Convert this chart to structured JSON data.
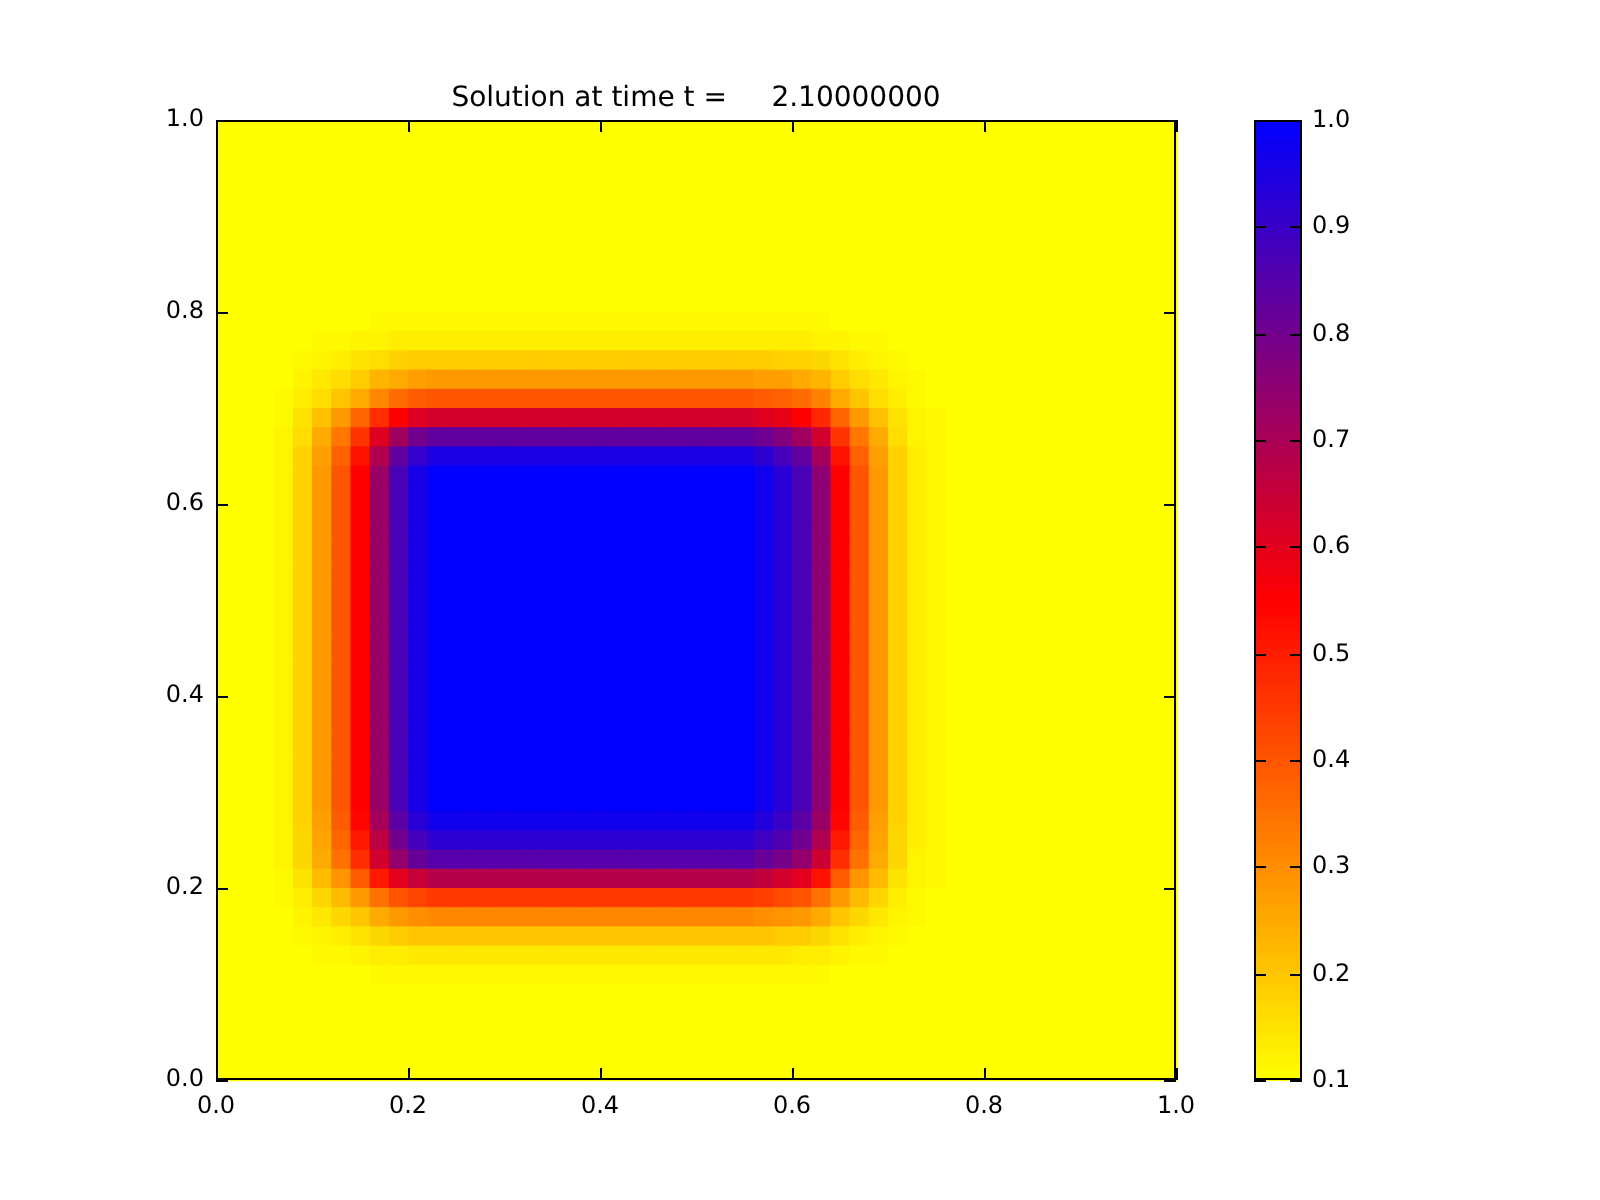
{
  "chart_data": {
    "type": "heatmap",
    "title": "Solution at time t =     2.10000000",
    "xlim": [
      0,
      1
    ],
    "xticks": [
      {
        "value": 0,
        "label": "0.0"
      },
      0.2,
      0.4,
      0.6,
      0.8,
      {
        "value": 1,
        "label": "1.0"
      }
    ],
    "ylim": [
      0,
      1
    ],
    "yticks": [
      {
        "value": 0,
        "label": "0.0"
      },
      0.2,
      0.4,
      0.6,
      0.8,
      {
        "value": 1,
        "label": "1.0"
      }
    ],
    "clim": [
      0.1,
      1
    ],
    "cticks": [
      0.1,
      0.2,
      0.3,
      0.4,
      0.5,
      0.6,
      0.7,
      0.8,
      0.9,
      {
        "value": 1,
        "label": "1.0"
      }
    ],
    "x": [
      0.01,
      0.03,
      0.05,
      0.07,
      0.09,
      0.11,
      0.13,
      0.15,
      0.17,
      0.19,
      0.21,
      0.23,
      0.25,
      0.27,
      0.29,
      0.31,
      0.33,
      0.35,
      0.37,
      0.39,
      0.41,
      0.43,
      0.45,
      0.47,
      0.49,
      0.51,
      0.53,
      0.55,
      0.57,
      0.59,
      0.61,
      0.63,
      0.65,
      0.67,
      0.69,
      0.71,
      0.73,
      0.75,
      0.77,
      0.79,
      0.81,
      0.83,
      0.85,
      0.87,
      0.89,
      0.91,
      0.93,
      0.95,
      0.97,
      0.99
    ],
    "y": [
      0.99,
      0.97,
      0.95,
      0.93,
      0.91,
      0.89,
      0.87,
      0.85,
      0.83,
      0.81,
      0.79,
      0.77,
      0.75,
      0.73,
      0.71,
      0.69,
      0.67,
      0.65,
      0.63,
      0.61,
      0.59,
      0.57,
      0.55,
      0.53,
      0.51,
      0.49,
      0.47,
      0.45,
      0.43,
      0.41,
      0.39,
      0.37,
      0.35,
      0.33,
      0.31,
      0.29,
      0.27,
      0.25,
      0.23,
      0.21,
      0.19,
      0.17,
      0.15,
      0.13,
      0.11,
      0.09,
      0.07,
      0.05,
      0.03,
      0.01
    ],
    "cells": [
      [
        0.1,
        0.1,
        0.1,
        0.1,
        0.1,
        0.1,
        0.1,
        0.1,
        0.1,
        0.1,
        0.1,
        0.1,
        0.1,
        0.1,
        0.1,
        0.1,
        0.1,
        0.1,
        0.1,
        0.1,
        0.1,
        0.1,
        0.1,
        0.1,
        0.1,
        0.1,
        0.1,
        0.1,
        0.1,
        0.1,
        0.1,
        0.1,
        0.1,
        0.1,
        0.1,
        0.1,
        0.1,
        0.1,
        0.1,
        0.1,
        0.1,
        0.1,
        0.1,
        0.1,
        0.1,
        0.1,
        0.1,
        0.1,
        0.1,
        0.1
      ],
      [
        0.1,
        0.1,
        0.1,
        0.1,
        0.1,
        0.1,
        0.1,
        0.1,
        0.1,
        0.1,
        0.1,
        0.1,
        0.1,
        0.1,
        0.1,
        0.1,
        0.1,
        0.1,
        0.1,
        0.1,
        0.1,
        0.1,
        0.1,
        0.1,
        0.1,
        0.1,
        0.1,
        0.1,
        0.1,
        0.1,
        0.1,
        0.1,
        0.1,
        0.1,
        0.1,
        0.1,
        0.1,
        0.1,
        0.1,
        0.1,
        0.1,
        0.1,
        0.1,
        0.1,
        0.1,
        0.1,
        0.1,
        0.1,
        0.1,
        0.1
      ],
      [
        0.1,
        0.1,
        0.1,
        0.1,
        0.1,
        0.1,
        0.1,
        0.1,
        0.1,
        0.1,
        0.1,
        0.1,
        0.1,
        0.1,
        0.1,
        0.1,
        0.1,
        0.1,
        0.1,
        0.1,
        0.1,
        0.1,
        0.1,
        0.1,
        0.1,
        0.1,
        0.1,
        0.1,
        0.1,
        0.1,
        0.1,
        0.1,
        0.1,
        0.1,
        0.1,
        0.1,
        0.1,
        0.1,
        0.1,
        0.1,
        0.1,
        0.1,
        0.1,
        0.1,
        0.1,
        0.1,
        0.1,
        0.1,
        0.1,
        0.1
      ],
      [
        0.1,
        0.1,
        0.1,
        0.1,
        0.1,
        0.1,
        0.1,
        0.1,
        0.1,
        0.1,
        0.1,
        0.1,
        0.1,
        0.1,
        0.1,
        0.1,
        0.1,
        0.1,
        0.1,
        0.1,
        0.1,
        0.1,
        0.1,
        0.1,
        0.1,
        0.1,
        0.1,
        0.1,
        0.1,
        0.1,
        0.1,
        0.1,
        0.1,
        0.1,
        0.1,
        0.1,
        0.1,
        0.1,
        0.1,
        0.1,
        0.1,
        0.1,
        0.1,
        0.1,
        0.1,
        0.1,
        0.1,
        0.1,
        0.1,
        0.1
      ],
      [
        0.1,
        0.1,
        0.1,
        0.1,
        0.1,
        0.1,
        0.1,
        0.1,
        0.1,
        0.1,
        0.1,
        0.1,
        0.1,
        0.1,
        0.1,
        0.1,
        0.1,
        0.1,
        0.1,
        0.1,
        0.1,
        0.1,
        0.1,
        0.1,
        0.1,
        0.1,
        0.1,
        0.1,
        0.1,
        0.1,
        0.1,
        0.1,
        0.1,
        0.1,
        0.1,
        0.1,
        0.1,
        0.1,
        0.1,
        0.1,
        0.1,
        0.1,
        0.1,
        0.1,
        0.1,
        0.1,
        0.1,
        0.1,
        0.1,
        0.1
      ],
      [
        0.1,
        0.1,
        0.1,
        0.1,
        0.1,
        0.1,
        0.1,
        0.1,
        0.1,
        0.1,
        0.1,
        0.1,
        0.1,
        0.1,
        0.1,
        0.1,
        0.1,
        0.1,
        0.1,
        0.1,
        0.1,
        0.1,
        0.1,
        0.1,
        0.1,
        0.1,
        0.1,
        0.1,
        0.1,
        0.1,
        0.1,
        0.1,
        0.1,
        0.1,
        0.1,
        0.1,
        0.1,
        0.1,
        0.1,
        0.1,
        0.1,
        0.1,
        0.1,
        0.1,
        0.1,
        0.1,
        0.1,
        0.1,
        0.1,
        0.1
      ],
      [
        0.1,
        0.1,
        0.1,
        0.1,
        0.1,
        0.1,
        0.1,
        0.1,
        0.1,
        0.1,
        0.1,
        0.1,
        0.1,
        0.1,
        0.1,
        0.1,
        0.1,
        0.1,
        0.1,
        0.1,
        0.1,
        0.1,
        0.1,
        0.1,
        0.1,
        0.1,
        0.1,
        0.1,
        0.1,
        0.1,
        0.1,
        0.1,
        0.1,
        0.1,
        0.1,
        0.1,
        0.1,
        0.1,
        0.1,
        0.1,
        0.1,
        0.1,
        0.1,
        0.1,
        0.1,
        0.1,
        0.1,
        0.1,
        0.1,
        0.1
      ],
      [
        0.1,
        0.1,
        0.1,
        0.1,
        0.1,
        0.1,
        0.1,
        0.1,
        0.1,
        0.1,
        0.1,
        0.1,
        0.1,
        0.1,
        0.1,
        0.1,
        0.1,
        0.1,
        0.1,
        0.1,
        0.1,
        0.1,
        0.1,
        0.1,
        0.1,
        0.1,
        0.1,
        0.1,
        0.1,
        0.1,
        0.1,
        0.1,
        0.1,
        0.1,
        0.1,
        0.1,
        0.1,
        0.1,
        0.1,
        0.1,
        0.1,
        0.1,
        0.1,
        0.1,
        0.1,
        0.1,
        0.1,
        0.1,
        0.1,
        0.1
      ],
      [
        0.1,
        0.1,
        0.1,
        0.1,
        0.1,
        0.1,
        0.1,
        0.1,
        0.1,
        0.1,
        0.1,
        0.1,
        0.1,
        0.1,
        0.1,
        0.1,
        0.1,
        0.1,
        0.1,
        0.1,
        0.1,
        0.1,
        0.1,
        0.1,
        0.1,
        0.1,
        0.1,
        0.1,
        0.1,
        0.1,
        0.1,
        0.1,
        0.1,
        0.1,
        0.1,
        0.1,
        0.1,
        0.1,
        0.1,
        0.1,
        0.1,
        0.1,
        0.1,
        0.1,
        0.1,
        0.1,
        0.1,
        0.1,
        0.1,
        0.1
      ],
      [
        0.1,
        0.1,
        0.1,
        0.1,
        0.1,
        0.1,
        0.1,
        0.1,
        0.1,
        0.1,
        0.1,
        0.1,
        0.1,
        0.1,
        0.1,
        0.1,
        0.1,
        0.1,
        0.1,
        0.1,
        0.1,
        0.1,
        0.1,
        0.1,
        0.1,
        0.1,
        0.1,
        0.1,
        0.1,
        0.1,
        0.1,
        0.1,
        0.1,
        0.1,
        0.1,
        0.1,
        0.1,
        0.1,
        0.1,
        0.1,
        0.1,
        0.1,
        0.1,
        0.1,
        0.1,
        0.1,
        0.1,
        0.1,
        0.1,
        0.1
      ],
      [
        0.1,
        0.1,
        0.1,
        0.1,
        0.1,
        0.1,
        0.1,
        0.1,
        0.11,
        0.11,
        0.11,
        0.11,
        0.11,
        0.11,
        0.11,
        0.11,
        0.11,
        0.11,
        0.11,
        0.11,
        0.11,
        0.11,
        0.11,
        0.11,
        0.11,
        0.11,
        0.11,
        0.11,
        0.11,
        0.11,
        0.11,
        0.11,
        0.1,
        0.1,
        0.1,
        0.1,
        0.1,
        0.1,
        0.1,
        0.1,
        0.1,
        0.1,
        0.1,
        0.1,
        0.1,
        0.1,
        0.1,
        0.1,
        0.1,
        0.1
      ],
      [
        0.1,
        0.1,
        0.1,
        0.1,
        0.1,
        0.11,
        0.11,
        0.12,
        0.12,
        0.13,
        0.13,
        0.13,
        0.13,
        0.13,
        0.13,
        0.13,
        0.13,
        0.13,
        0.13,
        0.13,
        0.13,
        0.13,
        0.13,
        0.13,
        0.13,
        0.13,
        0.13,
        0.13,
        0.13,
        0.13,
        0.13,
        0.12,
        0.12,
        0.11,
        0.11,
        0.1,
        0.1,
        0.1,
        0.1,
        0.1,
        0.1,
        0.1,
        0.1,
        0.1,
        0.1,
        0.1,
        0.1,
        0.1,
        0.1,
        0.1
      ],
      [
        0.1,
        0.1,
        0.1,
        0.1,
        0.11,
        0.12,
        0.13,
        0.15,
        0.16,
        0.18,
        0.19,
        0.19,
        0.19,
        0.19,
        0.19,
        0.19,
        0.19,
        0.19,
        0.19,
        0.19,
        0.19,
        0.19,
        0.19,
        0.19,
        0.19,
        0.19,
        0.19,
        0.19,
        0.19,
        0.18,
        0.18,
        0.17,
        0.15,
        0.13,
        0.12,
        0.11,
        0.1,
        0.1,
        0.1,
        0.1,
        0.1,
        0.1,
        0.1,
        0.1,
        0.1,
        0.1,
        0.1,
        0.1,
        0.1,
        0.1
      ],
      [
        0.1,
        0.1,
        0.1,
        0.1,
        0.12,
        0.14,
        0.16,
        0.19,
        0.23,
        0.25,
        0.27,
        0.28,
        0.28,
        0.28,
        0.28,
        0.28,
        0.28,
        0.28,
        0.28,
        0.28,
        0.28,
        0.28,
        0.28,
        0.28,
        0.28,
        0.28,
        0.28,
        0.28,
        0.27,
        0.27,
        0.25,
        0.23,
        0.19,
        0.16,
        0.14,
        0.12,
        0.11,
        0.1,
        0.1,
        0.1,
        0.1,
        0.1,
        0.1,
        0.1,
        0.1,
        0.1,
        0.1,
        0.1,
        0.1,
        0.1
      ],
      [
        0.1,
        0.1,
        0.1,
        0.11,
        0.13,
        0.16,
        0.2,
        0.25,
        0.31,
        0.36,
        0.39,
        0.4,
        0.4,
        0.4,
        0.4,
        0.4,
        0.4,
        0.4,
        0.4,
        0.4,
        0.4,
        0.4,
        0.4,
        0.4,
        0.4,
        0.4,
        0.4,
        0.4,
        0.39,
        0.38,
        0.36,
        0.32,
        0.25,
        0.2,
        0.16,
        0.13,
        0.11,
        0.1,
        0.1,
        0.1,
        0.1,
        0.1,
        0.1,
        0.1,
        0.1,
        0.1,
        0.1,
        0.1,
        0.1,
        0.1
      ],
      [
        0.1,
        0.1,
        0.1,
        0.11,
        0.15,
        0.21,
        0.28,
        0.37,
        0.47,
        0.55,
        0.61,
        0.63,
        0.63,
        0.63,
        0.63,
        0.63,
        0.63,
        0.63,
        0.63,
        0.63,
        0.63,
        0.63,
        0.63,
        0.63,
        0.63,
        0.63,
        0.63,
        0.63,
        0.61,
        0.59,
        0.55,
        0.48,
        0.37,
        0.28,
        0.21,
        0.15,
        0.12,
        0.11,
        0.1,
        0.1,
        0.1,
        0.1,
        0.1,
        0.1,
        0.1,
        0.1,
        0.1,
        0.1,
        0.1,
        0.1
      ],
      [
        0.1,
        0.1,
        0.1,
        0.12,
        0.16,
        0.25,
        0.34,
        0.46,
        0.61,
        0.72,
        0.8,
        0.83,
        0.83,
        0.83,
        0.83,
        0.83,
        0.83,
        0.83,
        0.83,
        0.83,
        0.83,
        0.83,
        0.83,
        0.83,
        0.83,
        0.83,
        0.83,
        0.83,
        0.81,
        0.77,
        0.72,
        0.63,
        0.46,
        0.34,
        0.25,
        0.16,
        0.12,
        0.11,
        0.1,
        0.1,
        0.1,
        0.1,
        0.1,
        0.1,
        0.1,
        0.1,
        0.1,
        0.1,
        0.1,
        0.1
      ],
      [
        0.1,
        0.1,
        0.1,
        0.12,
        0.18,
        0.27,
        0.38,
        0.52,
        0.69,
        0.83,
        0.91,
        0.95,
        0.95,
        0.95,
        0.95,
        0.95,
        0.95,
        0.95,
        0.95,
        0.95,
        0.95,
        0.95,
        0.95,
        0.95,
        0.95,
        0.95,
        0.95,
        0.95,
        0.92,
        0.88,
        0.83,
        0.71,
        0.52,
        0.38,
        0.27,
        0.18,
        0.13,
        0.11,
        0.1,
        0.1,
        0.1,
        0.1,
        0.1,
        0.1,
        0.1,
        0.1,
        0.1,
        0.1,
        0.1,
        0.1
      ],
      [
        0.1,
        0.1,
        0.1,
        0.12,
        0.18,
        0.28,
        0.4,
        0.55,
        0.73,
        0.87,
        0.96,
        1,
        1,
        1,
        1,
        1,
        1,
        1,
        1,
        1,
        1,
        1,
        1,
        1,
        1,
        1,
        1,
        1,
        0.97,
        0.93,
        0.87,
        0.75,
        0.55,
        0.4,
        0.28,
        0.18,
        0.13,
        0.11,
        0.1,
        0.1,
        0.1,
        0.1,
        0.1,
        0.1,
        0.1,
        0.1,
        0.1,
        0.1,
        0.1,
        0.1
      ],
      [
        0.1,
        0.1,
        0.1,
        0.12,
        0.18,
        0.28,
        0.4,
        0.55,
        0.73,
        0.87,
        0.96,
        1,
        1,
        1,
        1,
        1,
        1,
        1,
        1,
        1,
        1,
        1,
        1,
        1,
        1,
        1,
        1,
        1,
        0.97,
        0.93,
        0.87,
        0.75,
        0.55,
        0.4,
        0.28,
        0.18,
        0.13,
        0.11,
        0.1,
        0.1,
        0.1,
        0.1,
        0.1,
        0.1,
        0.1,
        0.1,
        0.1,
        0.1,
        0.1,
        0.1
      ],
      [
        0.1,
        0.1,
        0.1,
        0.12,
        0.18,
        0.28,
        0.4,
        0.55,
        0.73,
        0.87,
        0.96,
        1,
        1,
        1,
        1,
        1,
        1,
        1,
        1,
        1,
        1,
        1,
        1,
        1,
        1,
        1,
        1,
        1,
        0.97,
        0.93,
        0.87,
        0.75,
        0.55,
        0.4,
        0.28,
        0.18,
        0.13,
        0.11,
        0.1,
        0.1,
        0.1,
        0.1,
        0.1,
        0.1,
        0.1,
        0.1,
        0.1,
        0.1,
        0.1,
        0.1
      ],
      [
        0.1,
        0.1,
        0.1,
        0.12,
        0.18,
        0.28,
        0.4,
        0.55,
        0.73,
        0.87,
        0.96,
        1,
        1,
        1,
        1,
        1,
        1,
        1,
        1,
        1,
        1,
        1,
        1,
        1,
        1,
        1,
        1,
        1,
        0.97,
        0.93,
        0.87,
        0.75,
        0.55,
        0.4,
        0.28,
        0.18,
        0.13,
        0.11,
        0.1,
        0.1,
        0.1,
        0.1,
        0.1,
        0.1,
        0.1,
        0.1,
        0.1,
        0.1,
        0.1,
        0.1
      ],
      [
        0.1,
        0.1,
        0.1,
        0.12,
        0.18,
        0.28,
        0.4,
        0.55,
        0.73,
        0.87,
        0.96,
        1,
        1,
        1,
        1,
        1,
        1,
        1,
        1,
        1,
        1,
        1,
        1,
        1,
        1,
        1,
        1,
        1,
        0.97,
        0.93,
        0.87,
        0.75,
        0.55,
        0.4,
        0.28,
        0.18,
        0.13,
        0.11,
        0.1,
        0.1,
        0.1,
        0.1,
        0.1,
        0.1,
        0.1,
        0.1,
        0.1,
        0.1,
        0.1,
        0.1
      ],
      [
        0.1,
        0.1,
        0.1,
        0.12,
        0.18,
        0.28,
        0.4,
        0.55,
        0.73,
        0.87,
        0.96,
        1,
        1,
        1,
        1,
        1,
        1,
        1,
        1,
        1,
        1,
        1,
        1,
        1,
        1,
        1,
        1,
        1,
        0.97,
        0.93,
        0.87,
        0.75,
        0.55,
        0.4,
        0.28,
        0.18,
        0.13,
        0.11,
        0.1,
        0.1,
        0.1,
        0.1,
        0.1,
        0.1,
        0.1,
        0.1,
        0.1,
        0.1,
        0.1,
        0.1
      ],
      [
        0.1,
        0.1,
        0.1,
        0.12,
        0.18,
        0.28,
        0.4,
        0.55,
        0.73,
        0.87,
        0.96,
        1,
        1,
        1,
        1,
        1,
        1,
        1,
        1,
        1,
        1,
        1,
        1,
        1,
        1,
        1,
        1,
        1,
        0.97,
        0.93,
        0.87,
        0.75,
        0.55,
        0.4,
        0.28,
        0.18,
        0.13,
        0.11,
        0.1,
        0.1,
        0.1,
        0.1,
        0.1,
        0.1,
        0.1,
        0.1,
        0.1,
        0.1,
        0.1,
        0.1
      ],
      [
        0.1,
        0.1,
        0.1,
        0.12,
        0.18,
        0.28,
        0.4,
        0.55,
        0.73,
        0.87,
        0.96,
        1,
        1,
        1,
        1,
        1,
        1,
        1,
        1,
        1,
        1,
        1,
        1,
        1,
        1,
        1,
        1,
        1,
        0.97,
        0.93,
        0.87,
        0.75,
        0.55,
        0.4,
        0.28,
        0.18,
        0.13,
        0.11,
        0.1,
        0.1,
        0.1,
        0.1,
        0.1,
        0.1,
        0.1,
        0.1,
        0.1,
        0.1,
        0.1,
        0.1
      ],
      [
        0.1,
        0.1,
        0.1,
        0.12,
        0.18,
        0.28,
        0.4,
        0.55,
        0.73,
        0.87,
        0.96,
        1,
        1,
        1,
        1,
        1,
        1,
        1,
        1,
        1,
        1,
        1,
        1,
        1,
        1,
        1,
        1,
        1,
        0.97,
        0.93,
        0.87,
        0.75,
        0.55,
        0.4,
        0.28,
        0.18,
        0.13,
        0.11,
        0.1,
        0.1,
        0.1,
        0.1,
        0.1,
        0.1,
        0.1,
        0.1,
        0.1,
        0.1,
        0.1,
        0.1
      ],
      [
        0.1,
        0.1,
        0.1,
        0.12,
        0.18,
        0.28,
        0.4,
        0.55,
        0.73,
        0.87,
        0.96,
        1,
        1,
        1,
        1,
        1,
        1,
        1,
        1,
        1,
        1,
        1,
        1,
        1,
        1,
        1,
        1,
        1,
        0.97,
        0.93,
        0.87,
        0.75,
        0.55,
        0.4,
        0.28,
        0.18,
        0.13,
        0.11,
        0.1,
        0.1,
        0.1,
        0.1,
        0.1,
        0.1,
        0.1,
        0.1,
        0.1,
        0.1,
        0.1,
        0.1
      ],
      [
        0.1,
        0.1,
        0.1,
        0.12,
        0.18,
        0.28,
        0.4,
        0.55,
        0.73,
        0.87,
        0.96,
        1,
        1,
        1,
        1,
        1,
        1,
        1,
        1,
        1,
        1,
        1,
        1,
        1,
        1,
        1,
        1,
        1,
        0.97,
        0.93,
        0.87,
        0.75,
        0.55,
        0.4,
        0.28,
        0.18,
        0.13,
        0.11,
        0.1,
        0.1,
        0.1,
        0.1,
        0.1,
        0.1,
        0.1,
        0.1,
        0.1,
        0.1,
        0.1,
        0.1
      ],
      [
        0.1,
        0.1,
        0.1,
        0.12,
        0.18,
        0.28,
        0.4,
        0.55,
        0.73,
        0.87,
        0.96,
        1,
        1,
        1,
        1,
        1,
        1,
        1,
        1,
        1,
        1,
        1,
        1,
        1,
        1,
        1,
        1,
        1,
        0.97,
        0.93,
        0.87,
        0.75,
        0.55,
        0.4,
        0.28,
        0.18,
        0.13,
        0.11,
        0.1,
        0.1,
        0.1,
        0.1,
        0.1,
        0.1,
        0.1,
        0.1,
        0.1,
        0.1,
        0.1,
        0.1
      ],
      [
        0.1,
        0.1,
        0.1,
        0.12,
        0.18,
        0.28,
        0.4,
        0.55,
        0.73,
        0.87,
        0.96,
        1,
        1,
        1,
        1,
        1,
        1,
        1,
        1,
        1,
        1,
        1,
        1,
        1,
        1,
        1,
        1,
        1,
        0.97,
        0.93,
        0.87,
        0.75,
        0.55,
        0.4,
        0.28,
        0.18,
        0.13,
        0.11,
        0.1,
        0.1,
        0.1,
        0.1,
        0.1,
        0.1,
        0.1,
        0.1,
        0.1,
        0.1,
        0.1,
        0.1
      ],
      [
        0.1,
        0.1,
        0.1,
        0.12,
        0.18,
        0.28,
        0.4,
        0.55,
        0.73,
        0.87,
        0.96,
        1,
        1,
        1,
        1,
        1,
        1,
        1,
        1,
        1,
        1,
        1,
        1,
        1,
        1,
        1,
        1,
        1,
        0.97,
        0.93,
        0.87,
        0.75,
        0.55,
        0.4,
        0.28,
        0.18,
        0.13,
        0.11,
        0.1,
        0.1,
        0.1,
        0.1,
        0.1,
        0.1,
        0.1,
        0.1,
        0.1,
        0.1,
        0.1,
        0.1
      ],
      [
        0.1,
        0.1,
        0.1,
        0.12,
        0.18,
        0.28,
        0.4,
        0.55,
        0.73,
        0.87,
        0.96,
        1,
        1,
        1,
        1,
        1,
        1,
        1,
        1,
        1,
        1,
        1,
        1,
        1,
        1,
        1,
        1,
        1,
        0.97,
        0.93,
        0.87,
        0.75,
        0.55,
        0.4,
        0.28,
        0.18,
        0.13,
        0.11,
        0.1,
        0.1,
        0.1,
        0.1,
        0.1,
        0.1,
        0.1,
        0.1,
        0.1,
        0.1,
        0.1,
        0.1
      ],
      [
        0.1,
        0.1,
        0.1,
        0.12,
        0.18,
        0.28,
        0.4,
        0.55,
        0.73,
        0.87,
        0.96,
        1,
        1,
        1,
        1,
        1,
        1,
        1,
        1,
        1,
        1,
        1,
        1,
        1,
        1,
        1,
        1,
        1,
        0.97,
        0.93,
        0.87,
        0.75,
        0.55,
        0.4,
        0.28,
        0.18,
        0.13,
        0.11,
        0.1,
        0.1,
        0.1,
        0.1,
        0.1,
        0.1,
        0.1,
        0.1,
        0.1,
        0.1,
        0.1,
        0.1
      ],
      [
        0.1,
        0.1,
        0.1,
        0.12,
        0.18,
        0.28,
        0.4,
        0.55,
        0.73,
        0.87,
        0.96,
        1,
        1,
        1,
        1,
        1,
        1,
        1,
        1,
        1,
        1,
        1,
        1,
        1,
        1,
        1,
        1,
        1,
        0.97,
        0.93,
        0.87,
        0.75,
        0.55,
        0.4,
        0.28,
        0.18,
        0.13,
        0.11,
        0.1,
        0.1,
        0.1,
        0.1,
        0.1,
        0.1,
        0.1,
        0.1,
        0.1,
        0.1,
        0.1,
        0.1
      ],
      [
        0.1,
        0.1,
        0.1,
        0.12,
        0.18,
        0.28,
        0.4,
        0.55,
        0.73,
        0.87,
        0.96,
        1,
        1,
        1,
        1,
        1,
        1,
        1,
        1,
        1,
        1,
        1,
        1,
        1,
        1,
        1,
        1,
        1,
        0.97,
        0.93,
        0.87,
        0.75,
        0.55,
        0.4,
        0.28,
        0.18,
        0.13,
        0.11,
        0.1,
        0.1,
        0.1,
        0.1,
        0.1,
        0.1,
        0.1,
        0.1,
        0.1,
        0.1,
        0.1,
        0.1
      ],
      [
        0.1,
        0.1,
        0.1,
        0.12,
        0.18,
        0.27,
        0.39,
        0.54,
        0.71,
        0.84,
        0.93,
        0.97,
        0.97,
        0.97,
        0.97,
        0.97,
        0.97,
        0.97,
        0.97,
        0.97,
        0.97,
        0.97,
        0.97,
        0.97,
        0.97,
        0.97,
        0.97,
        0.97,
        0.94,
        0.9,
        0.84,
        0.73,
        0.54,
        0.39,
        0.27,
        0.18,
        0.13,
        0.11,
        0.1,
        0.1,
        0.1,
        0.1,
        0.1,
        0.1,
        0.1,
        0.1,
        0.1,
        0.1,
        0.1,
        0.1
      ],
      [
        0.1,
        0.1,
        0.1,
        0.12,
        0.17,
        0.26,
        0.37,
        0.51,
        0.67,
        0.8,
        0.88,
        0.92,
        0.92,
        0.92,
        0.92,
        0.92,
        0.92,
        0.92,
        0.92,
        0.92,
        0.92,
        0.92,
        0.92,
        0.92,
        0.92,
        0.92,
        0.92,
        0.92,
        0.89,
        0.86,
        0.8,
        0.69,
        0.51,
        0.37,
        0.26,
        0.17,
        0.13,
        0.11,
        0.1,
        0.1,
        0.1,
        0.1,
        0.1,
        0.1,
        0.1,
        0.1,
        0.1,
        0.1,
        0.1,
        0.1
      ],
      [
        0.1,
        0.1,
        0.1,
        0.12,
        0.17,
        0.25,
        0.35,
        0.47,
        0.63,
        0.74,
        0.82,
        0.85,
        0.85,
        0.85,
        0.85,
        0.85,
        0.85,
        0.85,
        0.85,
        0.85,
        0.85,
        0.85,
        0.85,
        0.85,
        0.85,
        0.85,
        0.85,
        0.85,
        0.82,
        0.79,
        0.74,
        0.64,
        0.47,
        0.35,
        0.25,
        0.17,
        0.12,
        0.11,
        0.1,
        0.1,
        0.1,
        0.1,
        0.1,
        0.1,
        0.1,
        0.1,
        0.1,
        0.1,
        0.1,
        0.1
      ],
      [
        0.1,
        0.1,
        0.1,
        0.11,
        0.15,
        0.22,
        0.29,
        0.39,
        0.51,
        0.6,
        0.65,
        0.68,
        0.68,
        0.68,
        0.68,
        0.68,
        0.68,
        0.68,
        0.68,
        0.68,
        0.68,
        0.68,
        0.68,
        0.68,
        0.68,
        0.68,
        0.68,
        0.68,
        0.66,
        0.63,
        0.6,
        0.52,
        0.39,
        0.29,
        0.22,
        0.15,
        0.12,
        0.11,
        0.1,
        0.1,
        0.1,
        0.1,
        0.1,
        0.1,
        0.1,
        0.1,
        0.1,
        0.1,
        0.1,
        0.1
      ],
      [
        0.1,
        0.1,
        0.1,
        0.11,
        0.13,
        0.17,
        0.22,
        0.28,
        0.35,
        0.4,
        0.43,
        0.45,
        0.45,
        0.45,
        0.45,
        0.45,
        0.45,
        0.45,
        0.45,
        0.45,
        0.45,
        0.45,
        0.45,
        0.45,
        0.45,
        0.45,
        0.45,
        0.45,
        0.44,
        0.42,
        0.4,
        0.35,
        0.28,
        0.22,
        0.17,
        0.13,
        0.11,
        0.1,
        0.1,
        0.1,
        0.1,
        0.1,
        0.1,
        0.1,
        0.1,
        0.1,
        0.1,
        0.1,
        0.1,
        0.1
      ],
      [
        0.1,
        0.1,
        0.1,
        0.1,
        0.12,
        0.14,
        0.17,
        0.2,
        0.25,
        0.28,
        0.3,
        0.31,
        0.31,
        0.31,
        0.31,
        0.31,
        0.31,
        0.31,
        0.31,
        0.31,
        0.31,
        0.31,
        0.31,
        0.31,
        0.31,
        0.31,
        0.31,
        0.31,
        0.3,
        0.29,
        0.28,
        0.25,
        0.2,
        0.17,
        0.14,
        0.12,
        0.11,
        0.1,
        0.1,
        0.1,
        0.1,
        0.1,
        0.1,
        0.1,
        0.1,
        0.1,
        0.1,
        0.1,
        0.1,
        0.1
      ],
      [
        0.1,
        0.1,
        0.1,
        0.1,
        0.11,
        0.12,
        0.13,
        0.15,
        0.17,
        0.19,
        0.2,
        0.2,
        0.2,
        0.2,
        0.2,
        0.2,
        0.2,
        0.2,
        0.2,
        0.2,
        0.2,
        0.2,
        0.2,
        0.2,
        0.2,
        0.2,
        0.2,
        0.2,
        0.2,
        0.19,
        0.19,
        0.17,
        0.15,
        0.13,
        0.12,
        0.11,
        0.1,
        0.1,
        0.1,
        0.1,
        0.1,
        0.1,
        0.1,
        0.1,
        0.1,
        0.1,
        0.1,
        0.1,
        0.1,
        0.1
      ],
      [
        0.1,
        0.1,
        0.1,
        0.1,
        0.1,
        0.11,
        0.11,
        0.12,
        0.13,
        0.13,
        0.14,
        0.14,
        0.14,
        0.14,
        0.14,
        0.14,
        0.14,
        0.14,
        0.14,
        0.14,
        0.14,
        0.14,
        0.14,
        0.14,
        0.14,
        0.14,
        0.14,
        0.14,
        0.14,
        0.14,
        0.13,
        0.13,
        0.12,
        0.11,
        0.11,
        0.1,
        0.1,
        0.1,
        0.1,
        0.1,
        0.1,
        0.1,
        0.1,
        0.1,
        0.1,
        0.1,
        0.1,
        0.1,
        0.1,
        0.1
      ],
      [
        0.1,
        0.1,
        0.1,
        0.1,
        0.1,
        0.1,
        0.1,
        0.1,
        0.11,
        0.11,
        0.11,
        0.11,
        0.11,
        0.11,
        0.11,
        0.11,
        0.11,
        0.11,
        0.11,
        0.11,
        0.11,
        0.11,
        0.11,
        0.11,
        0.11,
        0.11,
        0.11,
        0.11,
        0.11,
        0.11,
        0.11,
        0.11,
        0.1,
        0.1,
        0.1,
        0.1,
        0.1,
        0.1,
        0.1,
        0.1,
        0.1,
        0.1,
        0.1,
        0.1,
        0.1,
        0.1,
        0.1,
        0.1,
        0.1,
        0.1
      ],
      [
        0.1,
        0.1,
        0.1,
        0.1,
        0.1,
        0.1,
        0.1,
        0.1,
        0.1,
        0.1,
        0.1,
        0.1,
        0.1,
        0.1,
        0.1,
        0.1,
        0.1,
        0.1,
        0.1,
        0.1,
        0.1,
        0.1,
        0.1,
        0.1,
        0.1,
        0.1,
        0.1,
        0.1,
        0.1,
        0.1,
        0.1,
        0.1,
        0.1,
        0.1,
        0.1,
        0.1,
        0.1,
        0.1,
        0.1,
        0.1,
        0.1,
        0.1,
        0.1,
        0.1,
        0.1,
        0.1,
        0.1,
        0.1,
        0.1,
        0.1
      ],
      [
        0.1,
        0.1,
        0.1,
        0.1,
        0.1,
        0.1,
        0.1,
        0.1,
        0.1,
        0.1,
        0.1,
        0.1,
        0.1,
        0.1,
        0.1,
        0.1,
        0.1,
        0.1,
        0.1,
        0.1,
        0.1,
        0.1,
        0.1,
        0.1,
        0.1,
        0.1,
        0.1,
        0.1,
        0.1,
        0.1,
        0.1,
        0.1,
        0.1,
        0.1,
        0.1,
        0.1,
        0.1,
        0.1,
        0.1,
        0.1,
        0.1,
        0.1,
        0.1,
        0.1,
        0.1,
        0.1,
        0.1,
        0.1,
        0.1,
        0.1
      ],
      [
        0.1,
        0.1,
        0.1,
        0.1,
        0.1,
        0.1,
        0.1,
        0.1,
        0.1,
        0.1,
        0.1,
        0.1,
        0.1,
        0.1,
        0.1,
        0.1,
        0.1,
        0.1,
        0.1,
        0.1,
        0.1,
        0.1,
        0.1,
        0.1,
        0.1,
        0.1,
        0.1,
        0.1,
        0.1,
        0.1,
        0.1,
        0.1,
        0.1,
        0.1,
        0.1,
        0.1,
        0.1,
        0.1,
        0.1,
        0.1,
        0.1,
        0.1,
        0.1,
        0.1,
        0.1,
        0.1,
        0.1,
        0.1,
        0.1,
        0.1
      ],
      [
        0.1,
        0.1,
        0.1,
        0.1,
        0.1,
        0.1,
        0.1,
        0.1,
        0.1,
        0.1,
        0.1,
        0.1,
        0.1,
        0.1,
        0.1,
        0.1,
        0.1,
        0.1,
        0.1,
        0.1,
        0.1,
        0.1,
        0.1,
        0.1,
        0.1,
        0.1,
        0.1,
        0.1,
        0.1,
        0.1,
        0.1,
        0.1,
        0.1,
        0.1,
        0.1,
        0.1,
        0.1,
        0.1,
        0.1,
        0.1,
        0.1,
        0.1,
        0.1,
        0.1,
        0.1,
        0.1,
        0.1,
        0.1,
        0.1,
        0.1
      ],
      [
        0.1,
        0.1,
        0.1,
        0.1,
        0.1,
        0.1,
        0.1,
        0.1,
        0.1,
        0.1,
        0.1,
        0.1,
        0.1,
        0.1,
        0.1,
        0.1,
        0.1,
        0.1,
        0.1,
        0.1,
        0.1,
        0.1,
        0.1,
        0.1,
        0.1,
        0.1,
        0.1,
        0.1,
        0.1,
        0.1,
        0.1,
        0.1,
        0.1,
        0.1,
        0.1,
        0.1,
        0.1,
        0.1,
        0.1,
        0.1,
        0.1,
        0.1,
        0.1,
        0.1,
        0.1,
        0.1,
        0.1,
        0.1,
        0.1,
        0.1
      ]
    ]
  }
}
